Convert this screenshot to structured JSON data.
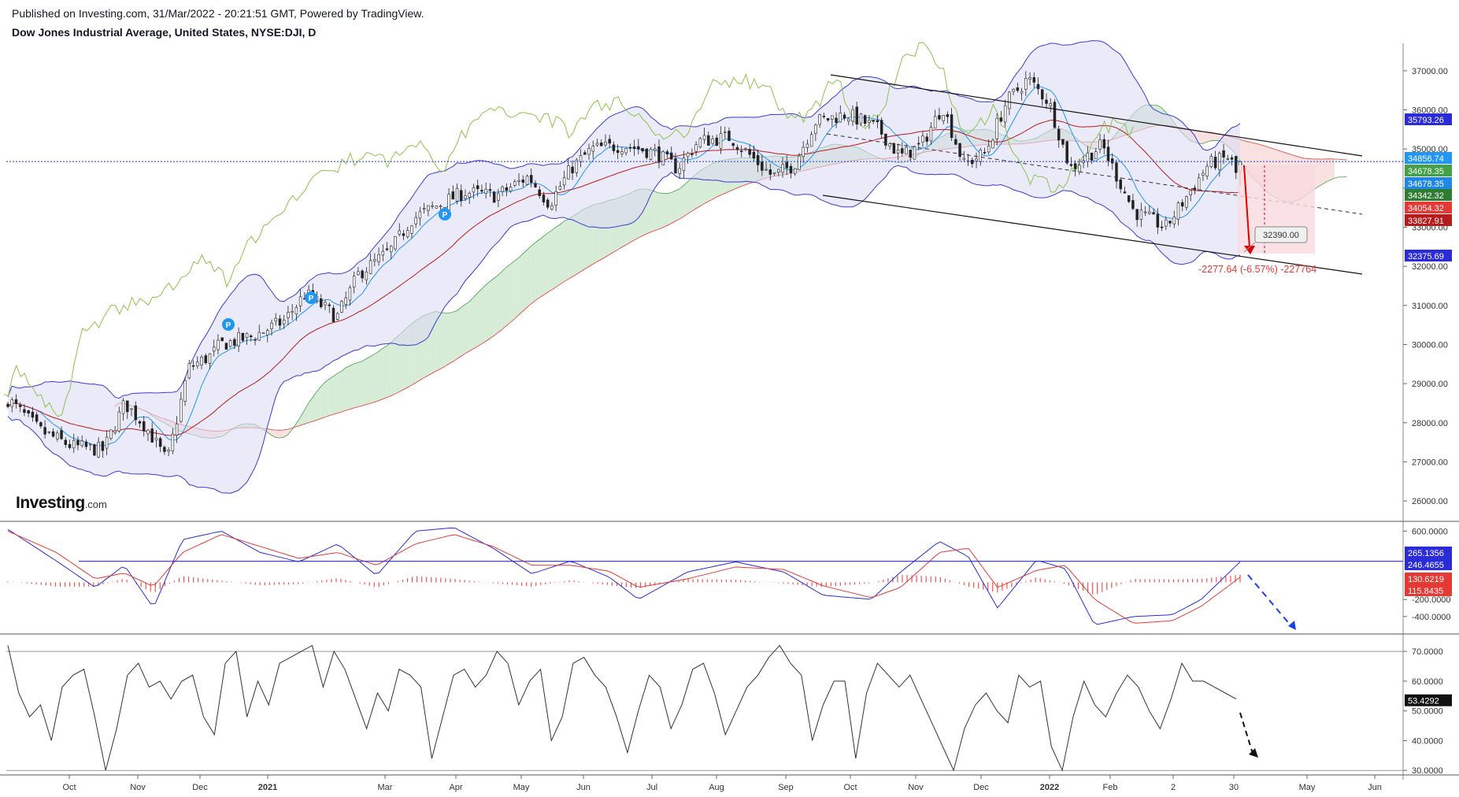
{
  "header": {
    "published": "Published on Investing.com, 31/Mar/2022 - 20:21:51 GMT, Powered by TradingView.",
    "instrument": "Dow Jones Industrial Average, United States, NYSE:DJI, D"
  },
  "logo": {
    "name": "Investing",
    "suffix": ".com"
  },
  "chart_data": [
    {
      "type": "candlestick",
      "panel": "price",
      "yticks": [
        "37000.00",
        "36000.00",
        "35000.00",
        "34000.00",
        "33000.00",
        "32000.00",
        "31000.00",
        "30000.00",
        "29000.00",
        "28000.00",
        "27000.00",
        "26000.00"
      ],
      "ylim": [
        25800,
        37400
      ],
      "x_labels": [
        {
          "label": "Oct",
          "bold": false
        },
        {
          "label": "Nov",
          "bold": false
        },
        {
          "label": "Dec",
          "bold": false
        },
        {
          "label": "2021",
          "bold": true
        },
        {
          "label": "Mar",
          "bold": false
        },
        {
          "label": "Apr",
          "bold": false
        },
        {
          "label": "May",
          "bold": false
        },
        {
          "label": "Jun",
          "bold": false
        },
        {
          "label": "Jul",
          "bold": false
        },
        {
          "label": "Aug",
          "bold": false
        },
        {
          "label": "Sep",
          "bold": false
        },
        {
          "label": "Oct",
          "bold": false
        },
        {
          "label": "Nov",
          "bold": false
        },
        {
          "label": "Dec",
          "bold": false
        },
        {
          "label": "2022",
          "bold": true
        },
        {
          "label": "Feb",
          "bold": false
        },
        {
          "label": "2",
          "bold": false
        },
        {
          "label": "30",
          "bold": false
        },
        {
          "label": "May",
          "bold": false
        },
        {
          "label": "Jun",
          "bold": false
        }
      ],
      "close_path": [
        [
          0,
          28600
        ],
        [
          3,
          27800
        ],
        [
          6,
          27400
        ],
        [
          9,
          27300
        ],
        [
          11,
          28500
        ],
        [
          13,
          27900
        ],
        [
          15,
          27000
        ],
        [
          17,
          29400
        ],
        [
          19,
          29700
        ],
        [
          20,
          30000
        ],
        [
          23,
          30200
        ],
        [
          26,
          30600
        ],
        [
          28,
          31300
        ],
        [
          31,
          30700
        ],
        [
          33,
          31800
        ],
        [
          36,
          32400
        ],
        [
          38,
          33200
        ],
        [
          40,
          33500
        ],
        [
          43,
          33900
        ],
        [
          46,
          33800
        ],
        [
          49,
          34300
        ],
        [
          51,
          33600
        ],
        [
          53,
          34500
        ],
        [
          55,
          35000
        ],
        [
          58,
          35100
        ],
        [
          61,
          34900
        ],
        [
          63,
          34500
        ],
        [
          65,
          35200
        ],
        [
          68,
          35300
        ],
        [
          70,
          34800
        ],
        [
          72,
          34300
        ],
        [
          74,
          34600
        ],
        [
          76,
          35700
        ],
        [
          79,
          35900
        ],
        [
          82,
          35500
        ],
        [
          84,
          34800
        ],
        [
          86,
          35100
        ],
        [
          88,
          36100
        ],
        [
          90,
          34600
        ],
        [
          92,
          34900
        ],
        [
          94,
          36200
        ],
        [
          96,
          36800
        ],
        [
          98,
          36200
        ],
        [
          100,
          34500
        ],
        [
          103,
          35100
        ],
        [
          106,
          33400
        ],
        [
          109,
          33000
        ],
        [
          111,
          33800
        ],
        [
          113,
          34600
        ],
        [
          115,
          34800
        ],
        [
          116,
          34100
        ]
      ],
      "last_close": 34678.35,
      "annotations": {
        "range_drop": "-2277.64 (-6.57%) -227764",
        "target_label": "32390.00"
      },
      "price_badges": [
        {
          "value": "35793.26",
          "color": "#2b2bd8"
        },
        {
          "value": "34856.74",
          "color": "#2196f3"
        },
        {
          "value": "34678.35",
          "color": "#43a047"
        },
        {
          "value": "34678.35",
          "color": "#1e88e5"
        },
        {
          "value": "34342.32",
          "color": "#2e7d32"
        },
        {
          "value": "34054.32",
          "color": "#e53935"
        },
        {
          "value": "33827.91",
          "color": "#b71c1c"
        },
        {
          "value": "32375.69",
          "color": "#2b2bd8"
        }
      ]
    },
    {
      "type": "macd",
      "panel": "oscillator",
      "yticks": [
        "600.0000",
        "-200.0000",
        "-400.0000"
      ],
      "ylim": [
        -540,
        640
      ],
      "macd_path": [
        [
          0,
          620
        ],
        [
          5,
          250
        ],
        [
          9,
          -60
        ],
        [
          12,
          200
        ],
        [
          15,
          -300
        ],
        [
          18,
          500
        ],
        [
          22,
          600
        ],
        [
          26,
          350
        ],
        [
          30,
          240
        ],
        [
          34,
          450
        ],
        [
          38,
          80
        ],
        [
          42,
          600
        ],
        [
          46,
          640
        ],
        [
          50,
          400
        ],
        [
          54,
          100
        ],
        [
          58,
          250
        ],
        [
          62,
          60
        ],
        [
          65,
          -200
        ],
        [
          70,
          120
        ],
        [
          75,
          240
        ],
        [
          80,
          120
        ],
        [
          84,
          -150
        ],
        [
          89,
          -200
        ],
        [
          92,
          120
        ],
        [
          96,
          480
        ],
        [
          99,
          300
        ],
        [
          102,
          -300
        ],
        [
          106,
          260
        ],
        [
          109,
          160
        ],
        [
          112,
          -500
        ],
        [
          116,
          -400
        ],
        [
          120,
          -380
        ],
        [
          123,
          -200
        ],
        [
          127,
          240
        ]
      ],
      "signal_path": [
        [
          0,
          600
        ],
        [
          5,
          350
        ],
        [
          9,
          40
        ],
        [
          12,
          110
        ],
        [
          15,
          -50
        ],
        [
          18,
          350
        ],
        [
          22,
          560
        ],
        [
          26,
          420
        ],
        [
          30,
          280
        ],
        [
          34,
          350
        ],
        [
          38,
          200
        ],
        [
          42,
          450
        ],
        [
          46,
          560
        ],
        [
          50,
          420
        ],
        [
          54,
          200
        ],
        [
          58,
          200
        ],
        [
          62,
          130
        ],
        [
          65,
          -60
        ],
        [
          70,
          40
        ],
        [
          75,
          180
        ],
        [
          80,
          150
        ],
        [
          84,
          -40
        ],
        [
          89,
          -180
        ],
        [
          92,
          -60
        ],
        [
          96,
          350
        ],
        [
          99,
          400
        ],
        [
          102,
          -60
        ],
        [
          106,
          140
        ],
        [
          109,
          200
        ],
        [
          112,
          -200
        ],
        [
          116,
          -480
        ],
        [
          120,
          -450
        ],
        [
          123,
          -280
        ],
        [
          127,
          60
        ]
      ],
      "level": 246.4655,
      "price_badges": [
        {
          "value": "265.1356",
          "color": "#2b2bd8"
        },
        {
          "value": "246.4655",
          "color": "#2b2bd8"
        },
        {
          "value": "130.6219",
          "color": "#e53935"
        },
        {
          "value": "115.8435",
          "color": "#e53935"
        }
      ]
    },
    {
      "type": "line",
      "panel": "rsi",
      "yticks": [
        "70.0000",
        "60.0000",
        "50.0000",
        "40.0000",
        "30.0000"
      ],
      "ylim": [
        29,
        74
      ],
      "values": [
        72,
        56,
        48,
        52,
        40,
        58,
        62,
        64,
        48,
        30,
        44,
        62,
        66,
        58,
        60,
        54,
        60,
        62,
        48,
        42,
        66,
        70,
        48,
        60,
        52,
        66,
        68,
        70,
        72,
        58,
        70,
        64,
        54,
        44,
        56,
        50,
        64,
        62,
        58,
        34,
        48,
        62,
        64,
        58,
        62,
        70,
        66,
        52,
        60,
        64,
        40,
        48,
        66,
        68,
        62,
        58,
        48,
        36,
        50,
        62,
        58,
        44,
        52,
        64,
        66,
        56,
        42,
        50,
        58,
        62,
        68,
        72,
        66,
        62,
        40,
        52,
        60,
        60,
        34,
        56,
        66,
        62,
        58,
        62,
        54,
        46,
        38,
        30,
        44,
        52,
        56,
        50,
        46,
        62,
        58,
        60,
        38,
        30,
        48,
        60,
        52,
        48,
        56,
        62,
        58,
        50,
        44,
        54,
        66,
        60,
        60,
        58,
        56,
        54
      ],
      "last": 53.4292,
      "price_badges": [
        {
          "value": "53.4292",
          "color": "#111111"
        }
      ]
    }
  ]
}
